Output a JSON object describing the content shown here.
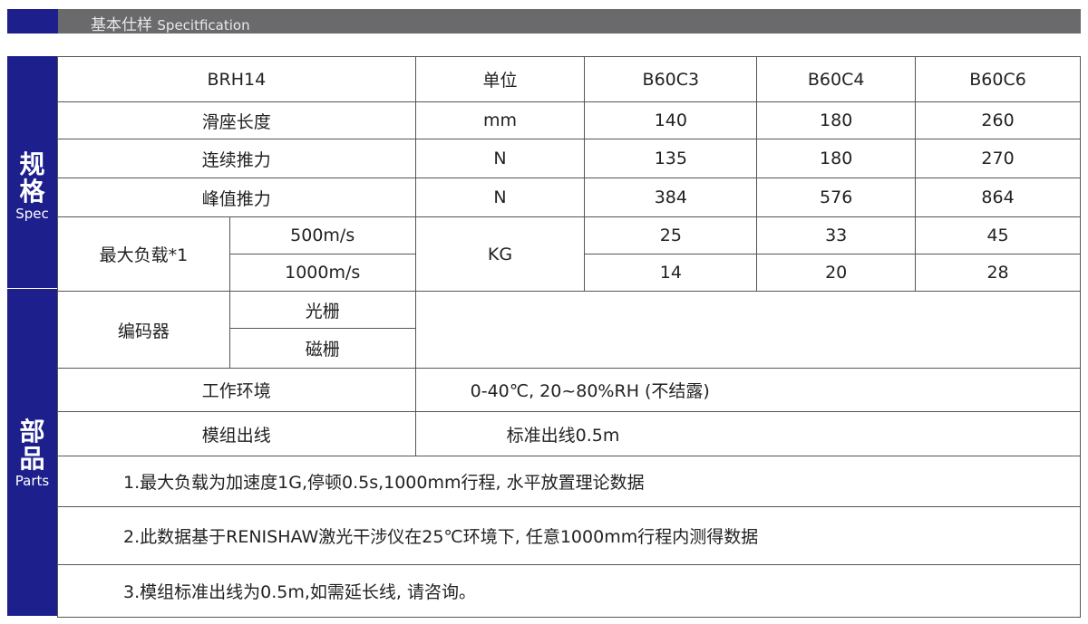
{
  "header": {
    "title_cn": "基本仕样",
    "title_en": "Specitfication"
  },
  "sidebar": {
    "spec_cn_1": "规",
    "spec_cn_2": "格",
    "spec_en": "Spec",
    "parts_cn_1": "部",
    "parts_cn_2": "品",
    "parts_en": "Parts"
  },
  "table": {
    "model": "BRH14",
    "unit_header": "单位",
    "columns": [
      "B60C3",
      "B60C4",
      "B60C6"
    ],
    "rows": [
      {
        "label": "滑座长度",
        "unit": "mm",
        "values": [
          "140",
          "180",
          "260"
        ]
      },
      {
        "label": "连续推力",
        "unit": "N",
        "values": [
          "135",
          "180",
          "270"
        ]
      },
      {
        "label": "峰值推力",
        "unit": "N",
        "values": [
          "384",
          "576",
          "864"
        ]
      }
    ],
    "max_load": {
      "label": "最大负载*1",
      "unit": "KG",
      "sub": [
        {
          "label": "500m/s",
          "values": [
            "25",
            "33",
            "45"
          ]
        },
        {
          "label": "1000m/s",
          "values": [
            "14",
            "20",
            "28"
          ]
        }
      ]
    },
    "encoder": {
      "label": "编码器",
      "sub": [
        "光栅",
        "磁栅"
      ]
    },
    "environment": {
      "label": "工作环境",
      "value": "0-40℃, 20~80%RH (不结露)"
    },
    "cable": {
      "label": "模组出线",
      "value": "标准出线0.5m"
    },
    "notes": [
      "1.最大负载为加速度1G,停顿0.5s,1000mm行程, 水平放置理论数据",
      "2.此数据基于RENISHAW激光干涉仪在25℃环境下, 任意1000mm行程内测得数据",
      "3.模组标准出线为0.5m,如需延长线, 请咨询。"
    ]
  }
}
